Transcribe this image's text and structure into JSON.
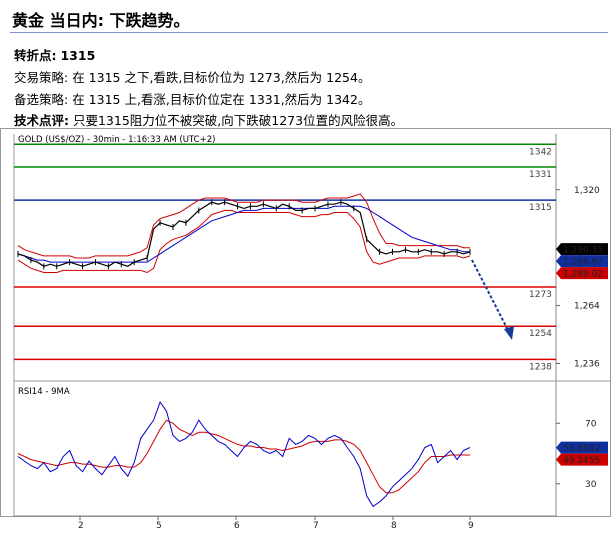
{
  "header": {
    "title": "黄金 当日内: 下跌趋势。"
  },
  "analysis": {
    "pivot_label": "转折点:",
    "pivot_value": "1315",
    "strategy_label": "交易策略:",
    "strategy_text": "在 1315 之下,看跌,目标价位为 1273,然后为 1254。",
    "alt_label": "备选策略:",
    "alt_text": "在 1315 上,看涨,目标价位定在 1331,然后为 1342。",
    "tech_label": "技术点评:",
    "tech_text": "只要1315阻力位不被突破,向下跌破1273位置的风险很高。"
  },
  "colors": {
    "bg": "#ffffff",
    "price": "#000000",
    "bollinger": "#d00000",
    "ma": "#0000cc",
    "resistance_green": "#008800",
    "pivot_blue": "#1030a0",
    "support_red": "#dd0000",
    "arrow": "#1a3a9a",
    "last_price_bg": "#000000",
    "blue_tag_bg": "#1030a0",
    "red_tag_bg": "#cc0000"
  },
  "chart_data": [
    {
      "type": "line",
      "title": "GOLD (US$/OZ) - 30min - 1:16:33 AM (UTC+2)",
      "x_ticks": [
        "2",
        "5",
        "6",
        "7",
        "8",
        "9"
      ],
      "y_ticks": [
        "1,320",
        "1,264",
        "1,236"
      ],
      "ylim": [
        1228,
        1346
      ],
      "levels": [
        {
          "label": "1342",
          "value": 1342,
          "color": "#008800"
        },
        {
          "label": "1331",
          "value": 1331,
          "color": "#008800"
        },
        {
          "label": "1315",
          "value": 1315,
          "color": "#1030a0"
        },
        {
          "label": "1273",
          "value": 1273,
          "color": "#dd0000"
        },
        {
          "label": "1254",
          "value": 1254,
          "color": "#dd0000"
        },
        {
          "label": "1238",
          "value": 1238,
          "color": "#dd0000"
        }
      ],
      "price_tags": [
        {
          "label": "1,290.35",
          "value": 1290.35,
          "style": "black"
        },
        {
          "label": "1,289.97",
          "value": 1289.97,
          "style": "blue"
        },
        {
          "label": "1,289.02",
          "value": 1289.02,
          "style": "red"
        }
      ],
      "price": [
        1289,
        1288,
        1286,
        1285,
        1283,
        1284,
        1283,
        1284,
        1285,
        1284,
        1283,
        1284,
        1285,
        1284,
        1283,
        1285,
        1284,
        1283,
        1285,
        1286,
        1287,
        1301,
        1304,
        1303,
        1302,
        1305,
        1304,
        1307,
        1310,
        1312,
        1314,
        1313,
        1314,
        1313,
        1312,
        1311,
        1312,
        1312,
        1313,
        1312,
        1311,
        1313,
        1312,
        1310,
        1310,
        1311,
        1311,
        1312,
        1313,
        1313,
        1314,
        1313,
        1311,
        1309,
        1296,
        1293,
        1290,
        1289,
        1290,
        1290,
        1291,
        1290,
        1290,
        1291,
        1290,
        1290,
        1289,
        1290,
        1290,
        1289,
        1290
      ],
      "bb_upper": [
        1293,
        1291,
        1290,
        1289,
        1288,
        1288,
        1288,
        1288,
        1288,
        1287,
        1287,
        1287,
        1288,
        1288,
        1288,
        1288,
        1288,
        1288,
        1289,
        1290,
        1292,
        1303,
        1306,
        1307,
        1308,
        1309,
        1311,
        1313,
        1315,
        1316,
        1316,
        1316,
        1316,
        1315,
        1314,
        1314,
        1314,
        1314,
        1315,
        1315,
        1315,
        1315,
        1315,
        1315,
        1314,
        1314,
        1314,
        1315,
        1316,
        1316,
        1316,
        1316,
        1317,
        1318,
        1314,
        1306,
        1299,
        1294,
        1294,
        1293,
        1293,
        1293,
        1293,
        1293,
        1293,
        1293,
        1293,
        1293,
        1293,
        1292,
        1292
      ],
      "bb_lower": [
        1286,
        1284,
        1282,
        1281,
        1280,
        1280,
        1280,
        1281,
        1281,
        1281,
        1281,
        1281,
        1281,
        1281,
        1281,
        1281,
        1281,
        1281,
        1281,
        1281,
        1280,
        1282,
        1291,
        1294,
        1296,
        1297,
        1298,
        1300,
        1302,
        1305,
        1308,
        1309,
        1310,
        1310,
        1309,
        1309,
        1309,
        1309,
        1309,
        1309,
        1309,
        1309,
        1309,
        1308,
        1307,
        1307,
        1307,
        1308,
        1308,
        1309,
        1309,
        1309,
        1306,
        1302,
        1290,
        1285,
        1284,
        1285,
        1286,
        1287,
        1287,
        1287,
        1287,
        1288,
        1288,
        1288,
        1288,
        1288,
        1288,
        1287,
        1288
      ],
      "ma": [
        1289,
        1288,
        1287,
        1286,
        1286,
        1285,
        1285,
        1285,
        1285,
        1285,
        1285,
        1285,
        1285,
        1285,
        1285,
        1285,
        1285,
        1285,
        1285,
        1285,
        1285,
        1287,
        1289,
        1291,
        1293,
        1295,
        1297,
        1299,
        1301,
        1303,
        1305,
        1306,
        1307,
        1308,
        1309,
        1310,
        1310,
        1310,
        1311,
        1311,
        1311,
        1311,
        1311,
        1311,
        1311,
        1311,
        1311,
        1311,
        1311,
        1312,
        1312,
        1312,
        1312,
        1312,
        1311,
        1309,
        1307,
        1305,
        1303,
        1301,
        1299,
        1297,
        1296,
        1295,
        1294,
        1293,
        1292,
        1291,
        1291,
        1290,
        1290
      ]
    },
    {
      "type": "line",
      "title": "RSI14 - 9MA",
      "y_ticks": [
        "70",
        "30"
      ],
      "ylim": [
        10,
        92
      ],
      "value_tags": [
        {
          "label": "53.8692",
          "value": 53.8692,
          "style": "blue"
        },
        {
          "label": "49.2455",
          "value": 49.2455,
          "style": "red"
        }
      ],
      "rsi": [
        48,
        45,
        42,
        40,
        44,
        38,
        40,
        48,
        52,
        42,
        38,
        45,
        40,
        36,
        42,
        48,
        40,
        35,
        44,
        60,
        66,
        72,
        84,
        78,
        62,
        58,
        60,
        64,
        72,
        66,
        62,
        58,
        56,
        52,
        48,
        54,
        58,
        56,
        52,
        50,
        52,
        48,
        60,
        56,
        58,
        62,
        60,
        56,
        60,
        62,
        60,
        54,
        48,
        40,
        22,
        15,
        18,
        22,
        28,
        32,
        36,
        40,
        46,
        54,
        56,
        44,
        48,
        52,
        46,
        52,
        54
      ],
      "rsi_ma": [
        50,
        48,
        46,
        45,
        44,
        43,
        42,
        43,
        44,
        44,
        43,
        43,
        42,
        41,
        41,
        42,
        42,
        41,
        41,
        44,
        50,
        58,
        66,
        72,
        70,
        66,
        64,
        62,
        64,
        64,
        63,
        62,
        60,
        58,
        56,
        55,
        55,
        54,
        54,
        53,
        53,
        52,
        53,
        54,
        55,
        57,
        58,
        58,
        58,
        59,
        59,
        58,
        56,
        52,
        44,
        36,
        28,
        24,
        24,
        26,
        30,
        34,
        38,
        44,
        48,
        48,
        48,
        49,
        49,
        49,
        49
      ]
    }
  ]
}
